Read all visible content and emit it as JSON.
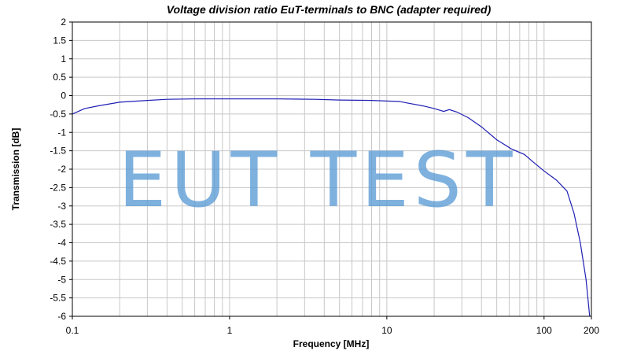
{
  "chart_data": {
    "type": "line",
    "title": "Voltage division ratio EuT-terminals to BNC (adapter required)",
    "xlabel": "Frequency [MHz]",
    "ylabel": "Transmission [dB]",
    "x_scale": "log",
    "xlim": [
      0.1,
      200
    ],
    "ylim": [
      -6,
      2
    ],
    "x_ticks": [
      0.1,
      1,
      10,
      100,
      200
    ],
    "x_tick_labels": [
      "0.1",
      "1",
      "10",
      "100",
      "200"
    ],
    "y_ticks": [
      2,
      1.5,
      1,
      0.5,
      0,
      -0.5,
      -1,
      -1.5,
      -2,
      -2.5,
      -3,
      -3.5,
      -4,
      -4.5,
      -5,
      -5.5,
      -6
    ],
    "y_tick_labels": [
      "2",
      "1.5",
      "1",
      "0.5",
      "0",
      "-0.5",
      "-1",
      "-1.5",
      "-2",
      "-2.5",
      "-3",
      "-3.5",
      "-4",
      "-4.5",
      "-5",
      "-5.5",
      "-6"
    ],
    "grid": true,
    "line_color": "#1f1fb4",
    "watermark": "EUT TEST",
    "watermark_color": "#5b9bd5",
    "series": [
      {
        "x": [
          0.1,
          0.12,
          0.15,
          0.2,
          0.3,
          0.4,
          0.6,
          1,
          2,
          3.5,
          5,
          8,
          12,
          17,
          20,
          23,
          25,
          28,
          33,
          40,
          50,
          62,
          75,
          85,
          100,
          120,
          140,
          155,
          170,
          185,
          195
        ],
        "y": [
          -0.5,
          -0.35,
          -0.27,
          -0.18,
          -0.13,
          -0.1,
          -0.09,
          -0.09,
          -0.09,
          -0.1,
          -0.12,
          -0.13,
          -0.16,
          -0.28,
          -0.35,
          -0.43,
          -0.38,
          -0.45,
          -0.6,
          -0.85,
          -1.2,
          -1.45,
          -1.6,
          -1.8,
          -2.05,
          -2.3,
          -2.6,
          -3.2,
          -4.0,
          -5.0,
          -6.0
        ]
      }
    ]
  }
}
